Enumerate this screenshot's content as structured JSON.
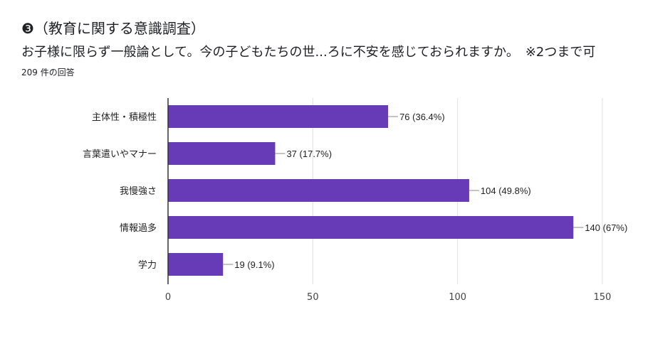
{
  "header": {
    "title": "❸（教育に関する意識調査）",
    "question": "お子様に限らず一般論として。今の子どもたちの世...ろに不安を感じておられますか。　※2つまで可",
    "response_count": "209 件の回答"
  },
  "chart_data": {
    "type": "bar",
    "orientation": "horizontal",
    "categories": [
      "主体性・積極性",
      "言葉遣いやマナー",
      "我慢強さ",
      "情報過多",
      "学力"
    ],
    "values": [
      76,
      37,
      104,
      140,
      19
    ],
    "data_labels": [
      "76 (36.4%)",
      "37 (17.7%)",
      "104 (49.8%)",
      "140 (67%)",
      "19 (9.1%)"
    ],
    "xlim": [
      0,
      150
    ],
    "xticks": [
      0,
      50,
      100,
      150
    ],
    "grid": true,
    "bar_color": "#673ab7"
  }
}
